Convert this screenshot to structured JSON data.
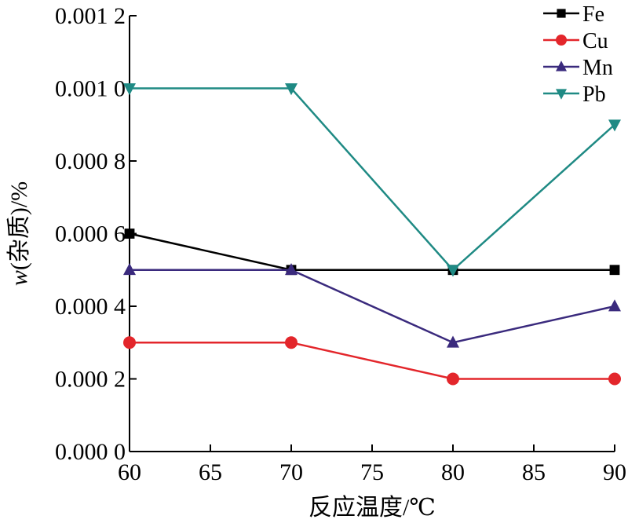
{
  "chart_data": {
    "type": "line",
    "title": "",
    "xlabel": "反应温度/℃",
    "ylabel_italic": "w",
    "ylabel_rest": "(杂质)/%",
    "x": [
      60,
      70,
      80,
      90
    ],
    "xlim": [
      60,
      90
    ],
    "ylim": [
      0,
      0.0012
    ],
    "x_ticks": [
      {
        "value": 60,
        "label": "60"
      },
      {
        "value": 65,
        "label": "65"
      },
      {
        "value": 70,
        "label": "70"
      },
      {
        "value": 75,
        "label": "75"
      },
      {
        "value": 80,
        "label": "80"
      },
      {
        "value": 85,
        "label": "85"
      },
      {
        "value": 90,
        "label": "90"
      }
    ],
    "y_ticks": [
      {
        "value": 0,
        "label": "0.000 0"
      },
      {
        "value": 0.0002,
        "label": "0.000 2"
      },
      {
        "value": 0.0004,
        "label": "0.000 4"
      },
      {
        "value": 0.0006,
        "label": "0.000 6"
      },
      {
        "value": 0.0008,
        "label": "0.000 8"
      },
      {
        "value": 0.001,
        "label": "0.001 0"
      },
      {
        "value": 0.0012,
        "label": "0.001 2"
      }
    ],
    "grid": false,
    "legend_position": "top-right",
    "series": [
      {
        "name": "Fe",
        "values": [
          0.0006,
          0.0005,
          0.0005,
          0.0005
        ],
        "color": "#000000",
        "marker": "square"
      },
      {
        "name": "Cu",
        "values": [
          0.0003,
          0.0003,
          0.0002,
          0.0002
        ],
        "color": "#e3262b",
        "marker": "circle"
      },
      {
        "name": "Mn",
        "values": [
          0.0005,
          0.0005,
          0.0003,
          0.0004
        ],
        "color": "#3a2a7d",
        "marker": "triangle-up"
      },
      {
        "name": "Pb",
        "values": [
          0.001,
          0.001,
          0.0005,
          0.0009
        ],
        "color": "#1f8a84",
        "marker": "triangle-down"
      }
    ]
  }
}
